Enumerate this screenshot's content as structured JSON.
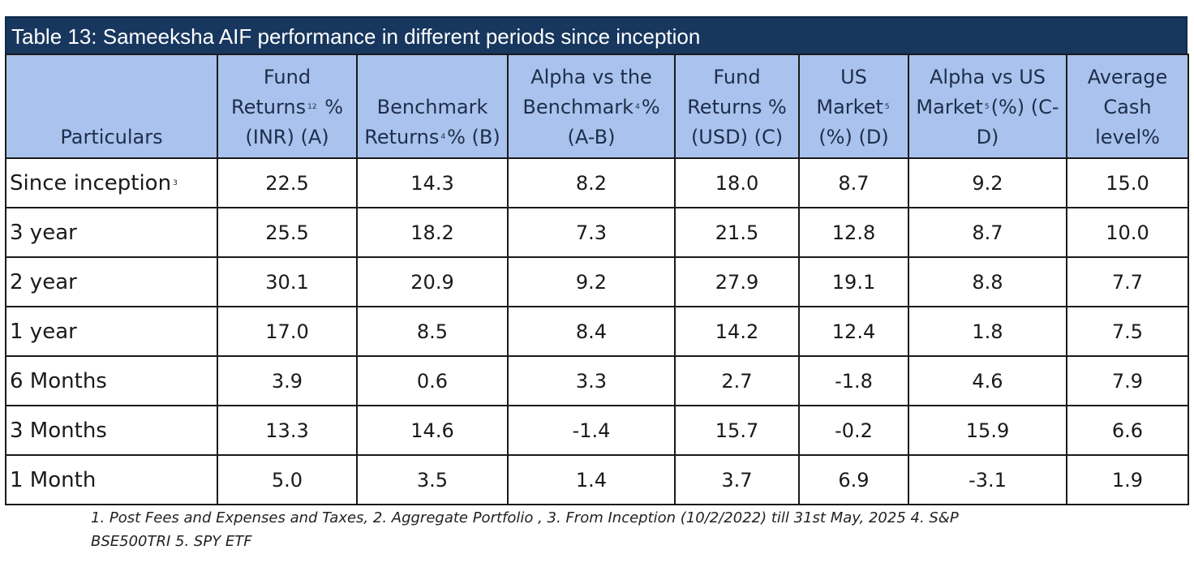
{
  "title": "Table 13: Sameeksha AIF performance in different periods since inception",
  "headers": [
    {
      "text": "Particulars"
    },
    {
      "pre": "Fund Returns",
      "sup": "12",
      "post": " % (INR) (A)"
    },
    {
      "pre": "Benchmark Returns",
      "sup": "4",
      "post": "% (B)"
    },
    {
      "pre": "Alpha vs the Benchmark",
      "sup": "4",
      "post": "% (A-B)"
    },
    {
      "text": "Fund Returns % (USD) (C)"
    },
    {
      "pre": "US Market",
      "sup": "5",
      "post": " (%) (D)"
    },
    {
      "pre": "Alpha vs US Market",
      "sup": "5",
      "post": "(%) (C-D)"
    },
    {
      "text": "Average Cash level%"
    }
  ],
  "rows": [
    {
      "label": "Since inception",
      "sup": "3",
      "values": [
        "22.5",
        "14.3",
        "8.2",
        "18.0",
        "8.7",
        "9.2",
        "15.0"
      ]
    },
    {
      "label": "3 year",
      "values": [
        "25.5",
        "18.2",
        "7.3",
        "21.5",
        "12.8",
        "8.7",
        "10.0"
      ]
    },
    {
      "label": "2 year",
      "values": [
        "30.1",
        "20.9",
        "9.2",
        "27.9",
        "19.1",
        "8.8",
        "7.7"
      ]
    },
    {
      "label": "1 year",
      "values": [
        "17.0",
        "8.5",
        "8.4",
        "14.2",
        "12.4",
        "1.8",
        "7.5"
      ]
    },
    {
      "label": "6 Months",
      "values": [
        "3.9",
        "0.6",
        "3.3",
        "2.7",
        "-1.8",
        "4.6",
        "7.9"
      ]
    },
    {
      "label": "3 Months",
      "values": [
        "13.3",
        "14.6",
        "-1.4",
        "15.7",
        "-0.2",
        "15.9",
        "6.6"
      ]
    },
    {
      "label": "1 Month",
      "values": [
        "5.0",
        "3.5",
        "1.4",
        "3.7",
        "6.9",
        "-3.1",
        "1.9"
      ]
    }
  ],
  "footnote_line1": "1. Post Fees and Expenses and Taxes, 2. Aggregate Portfolio , 3. From Inception (10/2/2022) till 31st May, 2025  4. S&P",
  "footnote_line2": "BSE500TRI 5. SPY ETF",
  "colors": {
    "title_bg": "#17375e",
    "header_bg": "#a9c3ee",
    "header_text": "#1f2d4a"
  }
}
